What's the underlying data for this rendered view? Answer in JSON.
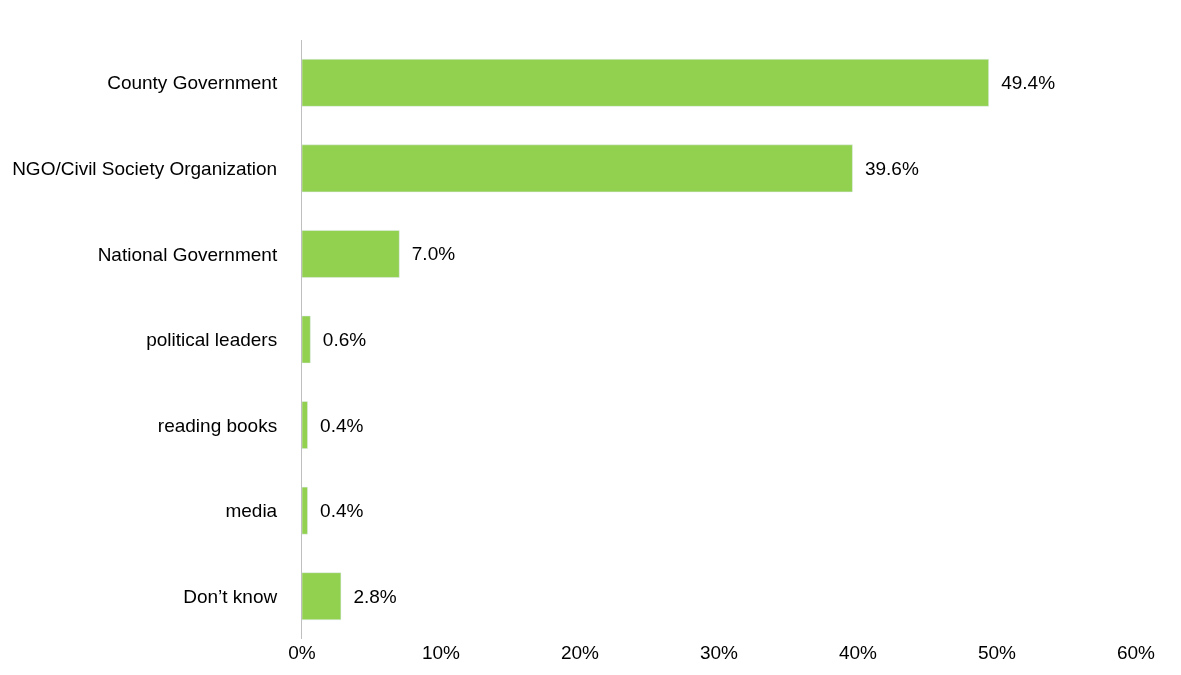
{
  "chart_data": {
    "type": "bar",
    "orientation": "horizontal",
    "categories": [
      "County Government",
      "NGO/Civil Society Organization",
      "National Government",
      "political leaders",
      "reading books",
      "media",
      "Don’t know"
    ],
    "values": [
      49.4,
      39.6,
      7.0,
      0.6,
      0.4,
      0.4,
      2.8
    ],
    "value_labels": [
      "49.4%",
      "39.6%",
      "7.0%",
      "0.6%",
      "0.4%",
      "0.4%",
      "2.8%"
    ],
    "color": "#92d050",
    "xlim": [
      0,
      60
    ],
    "xticks": [
      {
        "value": 0,
        "label": "0%"
      },
      {
        "value": 10,
        "label": "10%"
      },
      {
        "value": 20,
        "label": "20%"
      },
      {
        "value": 30,
        "label": "30%"
      },
      {
        "value": 40,
        "label": "40%"
      },
      {
        "value": 50,
        "label": "50%"
      },
      {
        "value": 60,
        "label": "60%"
      }
    ],
    "legend": false
  }
}
